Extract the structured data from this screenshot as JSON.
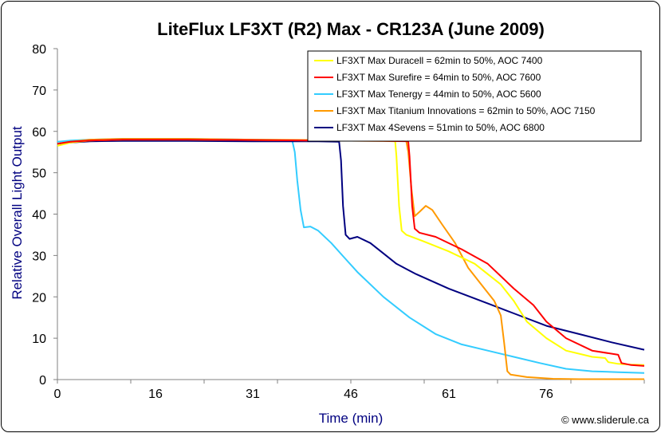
{
  "chart_data": {
    "type": "line",
    "title": "LiteFlux LF3XT (R2) Max - CR123A (June 2009)",
    "xlabel": "Time (min)",
    "ylabel": "Relative Overall Light Output",
    "xlim": [
      0,
      90
    ],
    "ylim": [
      0,
      80
    ],
    "x_ticks": [
      0,
      16,
      31,
      46,
      61,
      76
    ],
    "y_ticks": [
      0,
      10,
      20,
      30,
      40,
      50,
      60,
      70,
      80
    ],
    "grid": false,
    "legend_position": "top-right",
    "credit": "© www.sliderule.ca",
    "series": [
      {
        "name": "LF3XT Max Duracell = 62min to 50%, AOC 7400",
        "color": "#ffff00",
        "points": [
          [
            0,
            56.5
          ],
          [
            2,
            57.3
          ],
          [
            5,
            57.8
          ],
          [
            10,
            58
          ],
          [
            20,
            58
          ],
          [
            30,
            57.9
          ],
          [
            40,
            57.8
          ],
          [
            50,
            57.7
          ],
          [
            51.8,
            57.6
          ],
          [
            52,
            54
          ],
          [
            52.4,
            42
          ],
          [
            52.8,
            36
          ],
          [
            53.5,
            35
          ],
          [
            56,
            33.5
          ],
          [
            60,
            31
          ],
          [
            64,
            28
          ],
          [
            68,
            23
          ],
          [
            70,
            19
          ],
          [
            72,
            14
          ],
          [
            75,
            10
          ],
          [
            78,
            7
          ],
          [
            82,
            5.5
          ],
          [
            84,
            5.2
          ],
          [
            84.5,
            4.2
          ],
          [
            86,
            3.8
          ],
          [
            88,
            3.6
          ],
          [
            90,
            3.5
          ]
        ]
      },
      {
        "name": "LF3XT Max Surefire = 64min to 50%, AOC 7600",
        "color": "#ff0000",
        "points": [
          [
            0,
            57
          ],
          [
            2,
            57.5
          ],
          [
            5,
            57.8
          ],
          [
            10,
            58
          ],
          [
            20,
            58
          ],
          [
            30,
            57.9
          ],
          [
            40,
            57.8
          ],
          [
            50,
            57.7
          ],
          [
            53.8,
            57.6
          ],
          [
            54,
            54
          ],
          [
            54.4,
            42
          ],
          [
            54.8,
            36.5
          ],
          [
            55.5,
            35.5
          ],
          [
            58,
            34.5
          ],
          [
            62,
            31.5
          ],
          [
            66,
            28
          ],
          [
            70,
            22
          ],
          [
            73,
            18
          ],
          [
            75,
            14
          ],
          [
            78,
            10
          ],
          [
            82,
            7
          ],
          [
            86,
            6
          ],
          [
            86.5,
            4
          ],
          [
            88,
            3.5
          ],
          [
            90,
            3.3
          ]
        ]
      },
      {
        "name": "LF3XT Max Tenergy = 44min to 50%, AOC 5600",
        "color": "#33ccff",
        "points": [
          [
            0,
            57.5
          ],
          [
            2,
            57.8
          ],
          [
            5,
            58
          ],
          [
            10,
            58.2
          ],
          [
            20,
            58.2
          ],
          [
            30,
            58
          ],
          [
            36,
            57.9
          ],
          [
            36.4,
            55
          ],
          [
            36.8,
            48
          ],
          [
            37.3,
            41
          ],
          [
            37.8,
            36.8
          ],
          [
            38.8,
            37
          ],
          [
            40,
            36
          ],
          [
            42,
            33
          ],
          [
            44,
            29.5
          ],
          [
            46,
            26
          ],
          [
            50,
            20
          ],
          [
            54,
            15
          ],
          [
            58,
            11
          ],
          [
            62,
            8.5
          ],
          [
            66,
            7
          ],
          [
            70,
            5.5
          ],
          [
            74,
            4
          ],
          [
            78,
            2.6
          ],
          [
            82,
            2
          ],
          [
            86,
            1.8
          ],
          [
            90,
            1.6
          ]
        ]
      },
      {
        "name": "LF3XT Max Titanium Innovations = 62min to 50%, AOC 7150",
        "color": "#ff9900",
        "points": [
          [
            0,
            57
          ],
          [
            2,
            57.5
          ],
          [
            5,
            58
          ],
          [
            10,
            58.2
          ],
          [
            20,
            58.2
          ],
          [
            30,
            58
          ],
          [
            40,
            57.9
          ],
          [
            50,
            57.8
          ],
          [
            53.5,
            57.7
          ],
          [
            53.8,
            55
          ],
          [
            54.3,
            46
          ],
          [
            54.8,
            39.5
          ],
          [
            55.5,
            40.5
          ],
          [
            56.5,
            42
          ],
          [
            57.5,
            41
          ],
          [
            59,
            37.5
          ],
          [
            61,
            33
          ],
          [
            63,
            27
          ],
          [
            65,
            23
          ],
          [
            67,
            19
          ],
          [
            68,
            15.5
          ],
          [
            68.5,
            9
          ],
          [
            69,
            2
          ],
          [
            69.5,
            1.2
          ],
          [
            72,
            0.6
          ],
          [
            76,
            0.2
          ],
          [
            80,
            0.1
          ],
          [
            90,
            0.1
          ]
        ]
      },
      {
        "name": "LF3XT Max 4Sevens = 51min to 50%, AOC 6800",
        "color": "#000080",
        "points": [
          [
            0,
            57
          ],
          [
            2,
            57.3
          ],
          [
            5,
            57.6
          ],
          [
            10,
            57.7
          ],
          [
            20,
            57.7
          ],
          [
            30,
            57.6
          ],
          [
            40,
            57.6
          ],
          [
            43.2,
            57.5
          ],
          [
            43.5,
            53
          ],
          [
            43.8,
            42
          ],
          [
            44.2,
            35
          ],
          [
            44.8,
            34
          ],
          [
            46,
            34.5
          ],
          [
            48,
            33
          ],
          [
            50,
            30.5
          ],
          [
            52,
            28
          ],
          [
            55,
            25.5
          ],
          [
            60,
            22
          ],
          [
            65,
            19
          ],
          [
            70,
            16
          ],
          [
            75,
            13
          ],
          [
            80,
            11
          ],
          [
            85,
            9
          ],
          [
            90,
            7.2
          ]
        ]
      }
    ]
  }
}
